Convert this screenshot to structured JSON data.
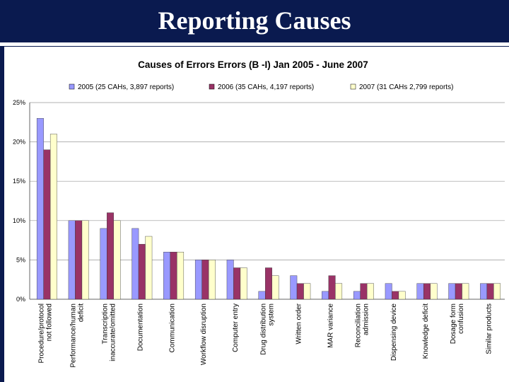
{
  "slide": {
    "title": "Reporting Causes"
  },
  "colors": {
    "background": "#0a1a4f",
    "series": [
      "#9999ff",
      "#993366",
      "#ffffcc"
    ]
  },
  "chart_data": {
    "type": "bar",
    "title": "Causes of Errors Errors (B -I) Jan 2005 - June 2007",
    "xlabel": "",
    "ylabel": "",
    "ylim": [
      0,
      25
    ],
    "yticks": [
      "0%",
      "5%",
      "10%",
      "15%",
      "20%",
      "25%"
    ],
    "grid": true,
    "legend": "top",
    "categories": [
      [
        "Procedure/protocol",
        "not followed"
      ],
      [
        "Performance/human",
        "deficit"
      ],
      [
        "Transcription",
        "inaccurate/omitted"
      ],
      [
        "Documentation"
      ],
      [
        "Communication"
      ],
      [
        "Workflow disruption"
      ],
      [
        "Computer entry"
      ],
      [
        "Drug distribution",
        "system"
      ],
      [
        "Written order"
      ],
      [
        "MAR variance"
      ],
      [
        "Reconciliation",
        "admission"
      ],
      [
        "Dispensing device"
      ],
      [
        "Knowledge deficit"
      ],
      [
        "Dosage form",
        "confusion"
      ],
      [
        "Similar products"
      ]
    ],
    "series": [
      {
        "name": "2005 (25 CAHs, 3,897 reports)",
        "values": [
          23,
          10,
          9,
          9,
          6,
          5,
          5,
          1,
          3,
          1,
          1,
          2,
          2,
          2,
          2
        ]
      },
      {
        "name": "2006 (35 CAHs, 4,197 reports)",
        "values": [
          19,
          10,
          11,
          7,
          6,
          5,
          4,
          4,
          2,
          3,
          2,
          1,
          2,
          2,
          2
        ]
      },
      {
        "name": "2007 (31 CAHs 2,799 reports)",
        "values": [
          21,
          10,
          10,
          8,
          6,
          5,
          4,
          3,
          2,
          2,
          2,
          1,
          2,
          2,
          2
        ]
      }
    ]
  }
}
